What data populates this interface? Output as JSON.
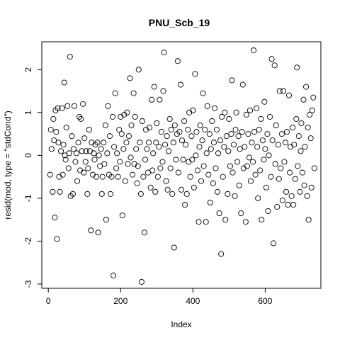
{
  "chart_data": {
    "type": "scatter",
    "title": "PNU_Scb_19",
    "xlabel": "Index",
    "ylabel": "resid(mod, type = \"stdCond\")",
    "xlim": [
      -18,
      754
    ],
    "ylim": [
      -3.1,
      2.65
    ],
    "x_ticks": [
      0,
      200,
      400,
      600
    ],
    "x_tick_labels": [
      "0",
      "200",
      "400",
      "600"
    ],
    "y_ticks": [
      -3,
      -2,
      -1,
      0,
      1,
      2
    ],
    "y_tick_labels": [
      "-3",
      "-2",
      "-1",
      "0",
      "1",
      "2"
    ],
    "grid": false,
    "legend": "none",
    "series": [
      {
        "points": [
          [
            5,
            -0.45
          ],
          [
            7,
            0.6
          ],
          [
            9,
            0.15
          ],
          [
            12,
            -0.85
          ],
          [
            14,
            0.85
          ],
          [
            16,
            0.35
          ],
          [
            18,
            -1.45
          ],
          [
            20,
            1.05
          ],
          [
            22,
            0.55
          ],
          [
            24,
            -1.95
          ],
          [
            26,
            1.1
          ],
          [
            28,
            0.3
          ],
          [
            30,
            -0.5
          ],
          [
            32,
            -0.85
          ],
          [
            35,
            0.1
          ],
          [
            38,
            1.1
          ],
          [
            40,
            -0.45
          ],
          [
            42,
            0.25
          ],
          [
            44,
            1.7
          ],
          [
            46,
            0.0
          ],
          [
            48,
            -0.1
          ],
          [
            50,
            0.65
          ],
          [
            53,
            1.15
          ],
          [
            56,
            -0.3
          ],
          [
            58,
            0.05
          ],
          [
            60,
            2.3
          ],
          [
            62,
            -0.95
          ],
          [
            65,
            0.45
          ],
          [
            68,
            -0.9
          ],
          [
            70,
            0.15
          ],
          [
            72,
            1.15
          ],
          [
            75,
            -0.15
          ],
          [
            78,
            0.05
          ],
          [
            80,
            -0.6
          ],
          [
            83,
            0.3
          ],
          [
            86,
            0.9
          ],
          [
            88,
            -0.35
          ],
          [
            90,
            0.85
          ],
          [
            93,
            0.1
          ],
          [
            96,
            1.2
          ],
          [
            98,
            -0.4
          ],
          [
            100,
            0.4
          ],
          [
            103,
            -0.15
          ],
          [
            105,
            0.1
          ],
          [
            108,
            -0.9
          ],
          [
            110,
            -0.3
          ],
          [
            113,
            0.6
          ],
          [
            115,
            0.1
          ],
          [
            118,
            -1.75
          ],
          [
            120,
            0.3
          ],
          [
            123,
            -0.45
          ],
          [
            126,
            0.05
          ],
          [
            128,
            -0.1
          ],
          [
            130,
            0.25
          ],
          [
            133,
            -0.5
          ],
          [
            136,
            0.3
          ],
          [
            138,
            -1.8
          ],
          [
            140,
            0.0
          ],
          [
            143,
            -0.25
          ],
          [
            146,
            0.15
          ],
          [
            148,
            -0.9
          ],
          [
            150,
            -0.5
          ],
          [
            153,
            0.3
          ],
          [
            155,
            -0.2
          ],
          [
            158,
            0.7
          ],
          [
            160,
            -1.5
          ],
          [
            163,
            0.05
          ],
          [
            165,
            1.15
          ],
          [
            168,
            -0.45
          ],
          [
            170,
            0.45
          ],
          [
            172,
            -0.9
          ],
          [
            175,
            -0.5
          ],
          [
            178,
            0.9
          ],
          [
            180,
            -2.8
          ],
          [
            182,
            0.2
          ],
          [
            185,
            1.45
          ],
          [
            188,
            -0.3
          ],
          [
            190,
            0.05
          ],
          [
            193,
            -0.5
          ],
          [
            196,
            0.6
          ],
          [
            198,
            -0.15
          ],
          [
            200,
            0.9
          ],
          [
            203,
            0.5
          ],
          [
            205,
            -1.4
          ],
          [
            208,
            0.15
          ],
          [
            210,
            0.95
          ],
          [
            213,
            -0.6
          ],
          [
            216,
            0.3
          ],
          [
            218,
            1.0
          ],
          [
            220,
            -0.2
          ],
          [
            223,
            0.45
          ],
          [
            226,
            1.8
          ],
          [
            228,
            -0.05
          ],
          [
            230,
            0.7
          ],
          [
            233,
            -0.45
          ],
          [
            236,
            1.45
          ],
          [
            238,
            -0.2
          ],
          [
            240,
            0.9
          ],
          [
            243,
            0.15
          ],
          [
            246,
            -0.65
          ],
          [
            248,
            -0.25
          ],
          [
            250,
            2.0
          ],
          [
            253,
            0.3
          ],
          [
            256,
            -0.9
          ],
          [
            258,
            -2.95
          ],
          [
            260,
            0.8
          ],
          [
            263,
            -0.5
          ],
          [
            266,
            -1.8
          ],
          [
            268,
            -0.1
          ],
          [
            270,
            0.6
          ],
          [
            273,
            0.15
          ],
          [
            276,
            -0.4
          ],
          [
            278,
            0.3
          ],
          [
            280,
            0.65
          ],
          [
            283,
            -0.75
          ],
          [
            286,
            1.3
          ],
          [
            288,
            -0.35
          ],
          [
            290,
            0.05
          ],
          [
            293,
            1.6
          ],
          [
            296,
            -0.85
          ],
          [
            298,
            0.3
          ],
          [
            300,
            0.75
          ],
          [
            303,
            -0.5
          ],
          [
            306,
            0.2
          ],
          [
            308,
            1.3
          ],
          [
            310,
            -0.3
          ],
          [
            313,
            0.55
          ],
          [
            316,
            -0.15
          ],
          [
            318,
            1.5
          ],
          [
            320,
            2.4
          ],
          [
            323,
            0.25
          ],
          [
            326,
            -0.6
          ],
          [
            328,
            0.45
          ],
          [
            330,
            -0.8
          ],
          [
            333,
            0.1
          ],
          [
            336,
            0.85
          ],
          [
            338,
            -0.3
          ],
          [
            340,
            0.6
          ],
          [
            343,
            -0.9
          ],
          [
            346,
            0.3
          ],
          [
            348,
            -2.15
          ],
          [
            350,
            0.7
          ],
          [
            353,
            -0.1
          ],
          [
            356,
            0.5
          ],
          [
            358,
            2.2
          ],
          [
            360,
            -0.4
          ],
          [
            363,
            0.55
          ],
          [
            366,
            1.65
          ],
          [
            368,
            -0.8
          ],
          [
            370,
            0.35
          ],
          [
            373,
            -0.1
          ],
          [
            376,
            0.8
          ],
          [
            378,
            -1.15
          ],
          [
            380,
            0.25
          ],
          [
            383,
            -0.9
          ],
          [
            386,
            0.6
          ],
          [
            388,
            -0.15
          ],
          [
            390,
            1.0
          ],
          [
            393,
            -0.5
          ],
          [
            396,
            0.45
          ],
          [
            398,
            -0.1
          ],
          [
            400,
            1.05
          ],
          [
            403,
            -0.75
          ],
          [
            406,
            1.9
          ],
          [
            408,
            0.0
          ],
          [
            410,
            0.55
          ],
          [
            413,
            -0.35
          ],
          [
            416,
            -1.55
          ],
          [
            418,
            0.2
          ],
          [
            420,
            0.7
          ],
          [
            423,
            -0.6
          ],
          [
            426,
            0.35
          ],
          [
            428,
            1.45
          ],
          [
            430,
            -0.25
          ],
          [
            433,
            0.6
          ],
          [
            436,
            -1.55
          ],
          [
            438,
            0.05
          ],
          [
            440,
            1.15
          ],
          [
            443,
            -0.45
          ],
          [
            446,
            0.5
          ],
          [
            448,
            -1.1
          ],
          [
            450,
            0.15
          ],
          [
            453,
            0.8
          ],
          [
            456,
            -0.65
          ],
          [
            458,
            0.3
          ],
          [
            460,
            1.1
          ],
          [
            463,
            -0.3
          ],
          [
            466,
            0.6
          ],
          [
            468,
            -0.85
          ],
          [
            470,
            0.05
          ],
          [
            473,
            -1.35
          ],
          [
            476,
            0.35
          ],
          [
            478,
            -2.3
          ],
          [
            480,
            0.9
          ],
          [
            483,
            -0.5
          ],
          [
            486,
            0.2
          ],
          [
            488,
            1.0
          ],
          [
            490,
            -1.5
          ],
          [
            493,
            0.45
          ],
          [
            496,
            -0.9
          ],
          [
            498,
            0.1
          ],
          [
            500,
            0.85
          ],
          [
            503,
            -0.25
          ],
          [
            506,
            0.5
          ],
          [
            508,
            1.75
          ],
          [
            510,
            -0.4
          ],
          [
            513,
            0.25
          ],
          [
            516,
            -0.95
          ],
          [
            518,
            0.6
          ],
          [
            520,
            1.0
          ],
          [
            523,
            -0.15
          ],
          [
            526,
            0.45
          ],
          [
            528,
            -0.7
          ],
          [
            530,
            0.15
          ],
          [
            533,
            -1.35
          ],
          [
            536,
            0.55
          ],
          [
            538,
            1.65
          ],
          [
            540,
            -0.3
          ],
          [
            543,
            0.2
          ],
          [
            546,
            -1.55
          ],
          [
            548,
            0.95
          ],
          [
            550,
            -0.25
          ],
          [
            553,
            0.5
          ],
          [
            556,
            -0.05
          ],
          [
            558,
            1.05
          ],
          [
            560,
            -0.6
          ],
          [
            563,
            0.3
          ],
          [
            566,
            -0.15
          ],
          [
            568,
            2.45
          ],
          [
            570,
            0.55
          ],
          [
            573,
            -0.45
          ],
          [
            576,
            1.1
          ],
          [
            578,
            0.2
          ],
          [
            580,
            -1.0
          ],
          [
            583,
            0.6
          ],
          [
            586,
            -0.35
          ],
          [
            588,
            0.85
          ],
          [
            590,
            -1.5
          ],
          [
            593,
            0.35
          ],
          [
            596,
            -0.1
          ],
          [
            598,
            1.25
          ],
          [
            600,
            0.15
          ],
          [
            603,
            -0.75
          ],
          [
            606,
            0.5
          ],
          [
            608,
            -1.3
          ],
          [
            610,
            0.0
          ],
          [
            613,
            0.9
          ],
          [
            616,
            -0.5
          ],
          [
            618,
            2.25
          ],
          [
            620,
            0.35
          ],
          [
            623,
            -2.05
          ],
          [
            626,
            2.1
          ],
          [
            628,
            -0.2
          ],
          [
            630,
            0.7
          ],
          [
            633,
            -1.2
          ],
          [
            636,
            0.25
          ],
          [
            638,
            -0.55
          ],
          [
            640,
            1.5
          ],
          [
            643,
            -0.3
          ],
          [
            646,
            0.5
          ],
          [
            648,
            -1.05
          ],
          [
            650,
            1.5
          ],
          [
            653,
            -0.15
          ],
          [
            656,
            0.3
          ],
          [
            658,
            -0.85
          ],
          [
            660,
            0.55
          ],
          [
            663,
            -1.15
          ],
          [
            666,
            1.4
          ],
          [
            668,
            -0.4
          ],
          [
            670,
            0.2
          ],
          [
            673,
            -0.95
          ],
          [
            676,
            0.65
          ],
          [
            678,
            -1.15
          ],
          [
            680,
            0.25
          ],
          [
            683,
            -0.55
          ],
          [
            686,
            0.85
          ],
          [
            688,
            2.05
          ],
          [
            690,
            -0.25
          ],
          [
            693,
            0.45
          ],
          [
            696,
            -0.85
          ],
          [
            698,
            0.1
          ],
          [
            700,
            0.75
          ],
          [
            703,
            -0.4
          ],
          [
            706,
            1.3
          ],
          [
            708,
            -0.7
          ],
          [
            710,
            0.2
          ],
          [
            713,
            1.6
          ],
          [
            716,
            -0.95
          ],
          [
            718,
            0.65
          ],
          [
            720,
            -1.5
          ],
          [
            723,
            0.95
          ],
          [
            726,
            0.4
          ],
          [
            728,
            -0.75
          ],
          [
            730,
            1.05
          ],
          [
            733,
            1.35
          ],
          [
            736,
            -0.3
          ]
        ]
      }
    ]
  }
}
